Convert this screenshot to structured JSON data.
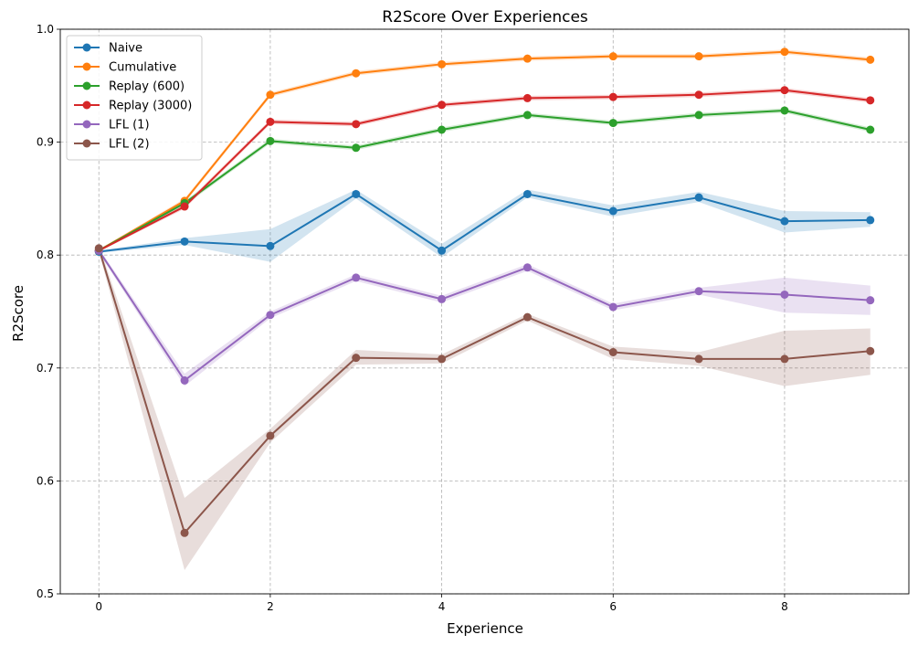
{
  "chart_data": {
    "type": "line",
    "title": "R2Score Over Experiences",
    "xlabel": "Experience",
    "ylabel": "R2Score",
    "xlim": [
      -0.45,
      9.45
    ],
    "ylim": [
      0.5,
      1.0
    ],
    "xticks": [
      0,
      2,
      4,
      6,
      8
    ],
    "yticks": [
      0.5,
      0.6,
      0.7,
      0.8,
      0.9,
      1.0
    ],
    "xtick_labels": [
      "0",
      "2",
      "4",
      "6",
      "8"
    ],
    "ytick_labels": [
      "0.5",
      "0.6",
      "0.7",
      "0.8",
      "0.9",
      "1.0"
    ],
    "grid": true,
    "legend_position": "top-left",
    "x": [
      0,
      1,
      2,
      3,
      4,
      5,
      6,
      7,
      8,
      9
    ],
    "series": [
      {
        "name": "Naive",
        "color": "#1f77b4",
        "values": [
          0.803,
          0.812,
          0.808,
          0.854,
          0.804,
          0.854,
          0.839,
          0.851,
          0.83,
          0.831
        ],
        "lower": [
          0.802,
          0.809,
          0.794,
          0.85,
          0.798,
          0.851,
          0.834,
          0.847,
          0.82,
          0.825
        ],
        "upper": [
          0.804,
          0.815,
          0.823,
          0.858,
          0.81,
          0.858,
          0.844,
          0.856,
          0.839,
          0.838
        ]
      },
      {
        "name": "Cumulative",
        "color": "#ff7f0e",
        "values": [
          0.804,
          0.848,
          0.942,
          0.961,
          0.969,
          0.974,
          0.976,
          0.976,
          0.98,
          0.973
        ],
        "lower": [
          0.803,
          0.846,
          0.94,
          0.959,
          0.967,
          0.972,
          0.974,
          0.974,
          0.978,
          0.971
        ],
        "upper": [
          0.805,
          0.85,
          0.944,
          0.963,
          0.971,
          0.976,
          0.978,
          0.978,
          0.982,
          0.975
        ]
      },
      {
        "name": "Replay (600)",
        "color": "#2ca02c",
        "values": [
          0.804,
          0.846,
          0.901,
          0.895,
          0.911,
          0.924,
          0.917,
          0.924,
          0.928,
          0.911
        ],
        "lower": [
          0.803,
          0.844,
          0.899,
          0.893,
          0.909,
          0.922,
          0.915,
          0.922,
          0.926,
          0.909
        ],
        "upper": [
          0.805,
          0.848,
          0.903,
          0.897,
          0.913,
          0.926,
          0.919,
          0.926,
          0.93,
          0.913
        ]
      },
      {
        "name": "Replay (3000)",
        "color": "#d62728",
        "values": [
          0.804,
          0.843,
          0.918,
          0.916,
          0.933,
          0.939,
          0.94,
          0.942,
          0.946,
          0.937
        ],
        "lower": [
          0.803,
          0.841,
          0.916,
          0.914,
          0.931,
          0.937,
          0.938,
          0.94,
          0.944,
          0.935
        ],
        "upper": [
          0.805,
          0.845,
          0.92,
          0.918,
          0.935,
          0.941,
          0.942,
          0.944,
          0.948,
          0.939
        ]
      },
      {
        "name": "LFL (1)",
        "color": "#9467bd",
        "values": [
          0.804,
          0.689,
          0.747,
          0.78,
          0.761,
          0.789,
          0.754,
          0.768,
          0.765,
          0.76
        ],
        "lower": [
          0.802,
          0.684,
          0.744,
          0.777,
          0.758,
          0.786,
          0.751,
          0.765,
          0.749,
          0.747
        ],
        "upper": [
          0.806,
          0.695,
          0.75,
          0.783,
          0.764,
          0.792,
          0.757,
          0.771,
          0.78,
          0.773
        ]
      },
      {
        "name": "LFL (2)",
        "color": "#8c564b",
        "values": [
          0.806,
          0.554,
          0.64,
          0.709,
          0.708,
          0.745,
          0.714,
          0.708,
          0.708,
          0.715
        ],
        "lower": [
          0.803,
          0.521,
          0.634,
          0.703,
          0.704,
          0.742,
          0.708,
          0.702,
          0.684,
          0.694
        ],
        "upper": [
          0.809,
          0.585,
          0.646,
          0.716,
          0.712,
          0.748,
          0.719,
          0.714,
          0.733,
          0.735
        ]
      }
    ]
  }
}
